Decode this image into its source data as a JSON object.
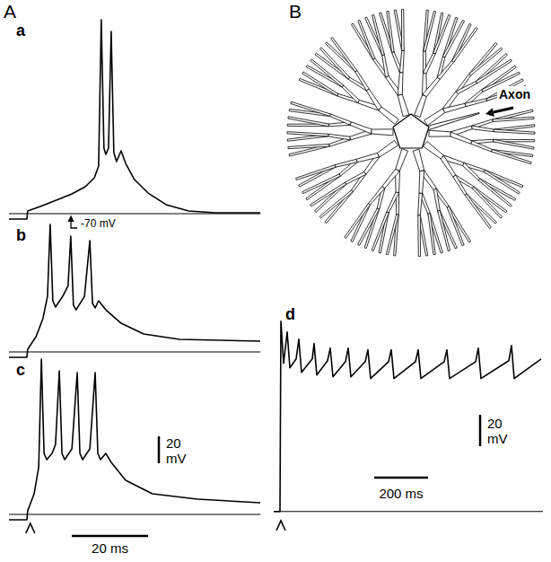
{
  "chart_data": [
    {
      "type": "line",
      "title": "a",
      "color": "#000000",
      "tick_labels": false,
      "xlim": [
        0,
        66
      ],
      "ylim": [
        -75,
        79
      ],
      "baseline": -70,
      "baseline_label": "-70 mV",
      "x": [
        0,
        4.7,
        4.9,
        8.2,
        11.8,
        16.5,
        20,
        22.4,
        23.5,
        24.2,
        24.9,
        25.4,
        26.1,
        26.8,
        27.5,
        28.2,
        29.4,
        30.6,
        32.9,
        36.5,
        41.2,
        47.1,
        54.1,
        65.9
      ],
      "values": [
        -74,
        -74,
        -68,
        -64.7,
        -60.7,
        -55.3,
        -50,
        -43.3,
        -34.7,
        74,
        -21.3,
        -26,
        -21.3,
        65.3,
        -24.7,
        -31.3,
        -23.3,
        -32.7,
        -44.7,
        -54.7,
        -63.3,
        -68,
        -69.3,
        -69.3
      ]
    },
    {
      "type": "line",
      "title": "b",
      "color": "#000000",
      "tick_labels": false,
      "xlim": [
        0,
        66
      ],
      "ylim": [
        -75,
        28
      ],
      "baseline": -70,
      "x": [
        0,
        4.7,
        4.9,
        7.1,
        8.9,
        10.1,
        10.8,
        11.5,
        12.2,
        14.1,
        15.5,
        16.2,
        16.9,
        17.6,
        19.8,
        21.2,
        21.9,
        22.6,
        23.5,
        25.4,
        29.4,
        35.3,
        44.7,
        65.9
      ],
      "values": [
        -74,
        -74,
        -68,
        -58.7,
        -45.3,
        -28.7,
        24.7,
        -32,
        -36.7,
        -28.7,
        -20.7,
        16,
        -35.3,
        -38.7,
        -28.7,
        12.7,
        -34,
        -37.3,
        -32,
        -38.7,
        -48.7,
        -56.7,
        -60.7,
        -62
      ]
    },
    {
      "type": "line",
      "title": "c",
      "color": "#000000",
      "tick_labels": false,
      "xlim": [
        0,
        66
      ],
      "ylim": [
        -75,
        49
      ],
      "baseline": -70,
      "stimulus": 5.6,
      "scale_bars": {
        "x": 20,
        "x_label": "20 ms",
        "y": 20,
        "y_label": "20 mV"
      },
      "x": [
        0,
        4.7,
        4.9,
        6.6,
        7.8,
        8.5,
        9.2,
        9.9,
        11.3,
        12.2,
        13.2,
        13.9,
        14.6,
        16.5,
        17.9,
        18.6,
        19.3,
        21.2,
        22.6,
        23.3,
        24,
        25.4,
        26.8,
        30.6,
        37.6,
        49.4,
        65.9
      ],
      "values": [
        -74,
        -74,
        -67.3,
        -54.7,
        -34.7,
        45.3,
        -24.7,
        -29.3,
        -24.7,
        -18,
        36.7,
        -24.7,
        -29.3,
        -21.3,
        35.3,
        -24.7,
        -29.3,
        -21.3,
        35.3,
        -24.7,
        -29.3,
        -24.7,
        -31.3,
        -44.7,
        -54.7,
        -58.7,
        -61.3
      ]
    },
    {
      "type": "line",
      "title": "d",
      "color": "#000000",
      "tick_labels": false,
      "xlim": [
        0,
        1000
      ],
      "ylim": [
        -73,
        55
      ],
      "baseline": -70,
      "stimulus": 26.7,
      "scale_bars": {
        "x": 200,
        "x_label": "200 ms",
        "y": 20,
        "y_label": "20 mV"
      },
      "x": [
        0,
        23.3,
        26.7,
        36.7,
        50,
        60,
        83.3,
        93.3,
        103.3,
        143.3,
        150,
        160,
        200,
        210,
        220,
        266.7,
        276.7,
        286.7,
        340,
        350,
        360,
        426.7,
        436.7,
        446.7,
        526.7,
        536.7,
        546.7,
        633.3,
        643.3,
        653.3,
        750,
        760,
        770,
        873.3,
        883.3,
        893.3,
        993.3
      ],
      "values": [
        -70,
        -70,
        51.1,
        24.3,
        44.3,
        21.4,
        27.1,
        39.7,
        18.6,
        27.1,
        36.9,
        16.9,
        26,
        34,
        15.7,
        25.4,
        34,
        15.7,
        25.4,
        32.9,
        14.6,
        25.4,
        32.9,
        14.6,
        25.4,
        32.9,
        14.6,
        25.4,
        32.9,
        14.6,
        25.4,
        34,
        14.6,
        26,
        35.7,
        14.6,
        27.1
      ]
    }
  ],
  "panel_labels": [
    "A",
    "B"
  ],
  "diagram": {
    "axon_label": "Axon"
  }
}
